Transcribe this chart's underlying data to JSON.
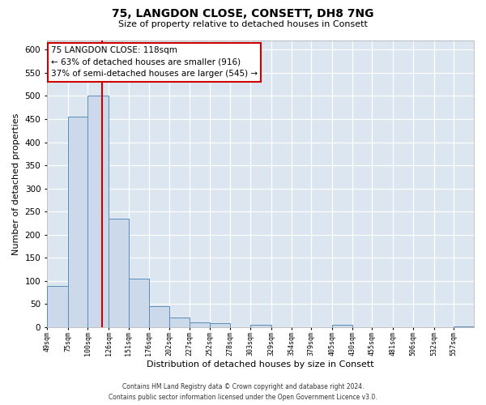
{
  "title": "75, LANGDON CLOSE, CONSETT, DH8 7NG",
  "subtitle": "Size of property relative to detached houses in Consett",
  "xlabel": "Distribution of detached houses by size in Consett",
  "ylabel": "Number of detached properties",
  "bin_edges": [
    49,
    75,
    100,
    126,
    151,
    176,
    202,
    227,
    252,
    278,
    303,
    329,
    354,
    379,
    405,
    430,
    455,
    481,
    506,
    532,
    557,
    582
  ],
  "bar_heights": [
    90,
    455,
    500,
    235,
    105,
    45,
    20,
    10,
    8,
    0,
    5,
    0,
    0,
    0,
    5,
    0,
    0,
    0,
    0,
    0,
    2
  ],
  "bar_color": "#ccd9ea",
  "bar_edge_color": "#5b8db8",
  "vline_x": 118,
  "vline_color": "#cc0000",
  "annotation_title": "75 LANGDON CLOSE: 118sqm",
  "annotation_line1": "← 63% of detached houses are smaller (916)",
  "annotation_line2": "37% of semi-detached houses are larger (545) →",
  "annotation_box_color": "#ffffff",
  "annotation_box_edge": "#cc0000",
  "ylim": [
    0,
    620
  ],
  "yticks": [
    0,
    50,
    100,
    150,
    200,
    250,
    300,
    350,
    400,
    450,
    500,
    550,
    600
  ],
  "footer_line1": "Contains HM Land Registry data © Crown copyright and database right 2024.",
  "footer_line2": "Contains public sector information licensed under the Open Government Licence v3.0.",
  "fig_background": "#ffffff",
  "plot_bg_color": "#dce6f1"
}
